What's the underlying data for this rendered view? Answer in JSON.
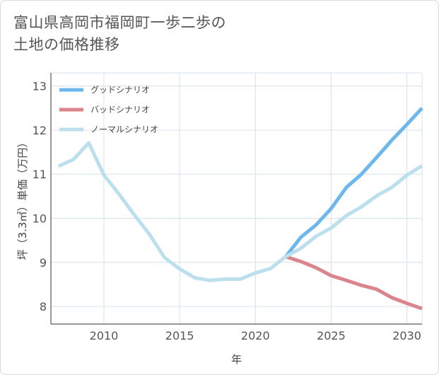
{
  "title_lines": [
    "富山県高岡市福岡町一歩二歩の",
    "土地の価格推移"
  ],
  "colors": {
    "good": "#6cb8ec",
    "bad": "#db848c",
    "normal": "#bcdfee",
    "grid": "#d6e0ea",
    "axis": "#333333"
  },
  "chart_data": {
    "type": "line",
    "title": "富山県高岡市福岡町一歩二歩の土地の価格推移",
    "xlabel": "年",
    "ylabel": "坪（3.3㎡）単価（万円）",
    "xlim": [
      2006.5,
      2031
    ],
    "ylim": [
      7.6,
      13.3
    ],
    "x_ticks": [
      2010,
      2015,
      2020,
      2025,
      2030
    ],
    "y_ticks": [
      8,
      9,
      10,
      11,
      12,
      13
    ],
    "x_tick_labels": [
      "2010",
      "2015",
      "2020",
      "2025",
      "2030"
    ],
    "y_tick_labels": [
      "8",
      "9",
      "10",
      "11",
      "12",
      "13"
    ],
    "grid": true,
    "legend_position": "top-left",
    "series": [
      {
        "name": "グッドシナリオ",
        "color_key": "good",
        "x": [
          2022,
          2023,
          2024,
          2025,
          2026,
          2027,
          2028,
          2029,
          2030,
          2031
        ],
        "y": [
          9.13,
          9.57,
          9.85,
          10.22,
          10.7,
          11.0,
          11.38,
          11.77,
          12.13,
          12.5
        ]
      },
      {
        "name": "バッドシナリオ",
        "color_key": "bad",
        "x": [
          2022,
          2023,
          2024,
          2025,
          2026,
          2027,
          2028,
          2029,
          2030,
          2031
        ],
        "y": [
          9.13,
          9.02,
          8.88,
          8.7,
          8.59,
          8.48,
          8.39,
          8.2,
          8.07,
          7.95
        ]
      },
      {
        "name": "ノーマルシナリオ",
        "color_key": "normal",
        "x": [
          2007,
          2008,
          2009,
          2010,
          2011,
          2012,
          2013,
          2014,
          2015,
          2016,
          2017,
          2018,
          2019,
          2020,
          2021,
          2022,
          2023,
          2024,
          2025,
          2026,
          2027,
          2028,
          2029,
          2030,
          2031
        ],
        "y": [
          11.18,
          11.34,
          11.71,
          10.98,
          10.55,
          10.08,
          9.64,
          9.11,
          8.85,
          8.65,
          8.59,
          8.62,
          8.62,
          8.76,
          8.86,
          9.13,
          9.32,
          9.59,
          9.78,
          10.06,
          10.26,
          10.51,
          10.7,
          10.98,
          11.19
        ]
      }
    ]
  }
}
